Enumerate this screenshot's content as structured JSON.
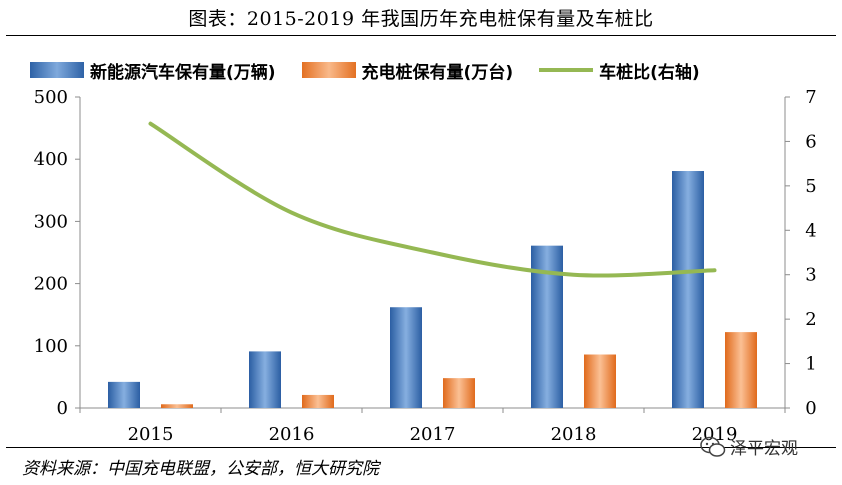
{
  "title": "图表：2015-2019 年我国历年充电桩保有量及车桩比",
  "source": "资料来源：中国充电联盟，公安部，恒大研究院",
  "watermark": "泽平宏观",
  "colors": {
    "ev_bar": "#2e62a6",
    "charger_bar": "#e37022",
    "ratio_line": "#95b853"
  },
  "chart_data": {
    "type": "bar",
    "categories": [
      "2015",
      "2016",
      "2017",
      "2018",
      "2019"
    ],
    "series": [
      {
        "name": "新能源汽车保有量(万辆)",
        "type": "bar",
        "axis": "left",
        "values": [
          42,
          91,
          162,
          261,
          381
        ]
      },
      {
        "name": "充电桩保有量(万台)",
        "type": "bar",
        "axis": "left",
        "values": [
          6,
          21,
          48,
          86,
          122
        ]
      },
      {
        "name": "车桩比(右轴)",
        "type": "line",
        "axis": "right",
        "values": [
          6.4,
          4.4,
          3.5,
          3.0,
          3.1
        ]
      }
    ],
    "y_left": {
      "lim": [
        0,
        500
      ],
      "ticks": [
        "0",
        "100",
        "200",
        "300",
        "400",
        "500"
      ]
    },
    "y_right": {
      "lim": [
        0,
        7
      ],
      "ticks": [
        "0",
        "1",
        "2",
        "3",
        "4",
        "5",
        "6",
        "7"
      ]
    },
    "legend": "top",
    "grid": false
  }
}
